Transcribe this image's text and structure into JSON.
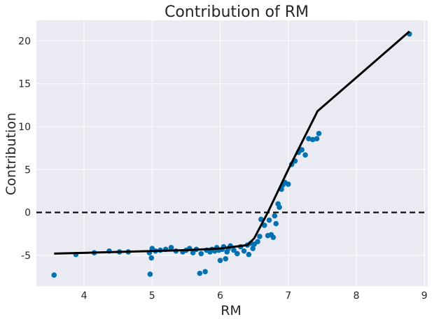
{
  "chart_data": {
    "type": "scatter",
    "title": "Contribution of RM",
    "xlabel": "RM",
    "ylabel": "Contribution",
    "xlim": [
      3.3,
      9.05
    ],
    "ylim": [
      -8.6,
      22.4
    ],
    "x_ticks": [
      4,
      5,
      6,
      7,
      8,
      9
    ],
    "y_ticks": [
      -5,
      0,
      5,
      10,
      15,
      20
    ],
    "grid": true,
    "reference_line": {
      "y": 0,
      "style": "dashed",
      "color": "#000000"
    },
    "colors": {
      "background": "#EAEAF2",
      "points": "#0072B2",
      "line": "#000000",
      "grid": "#ffffff"
    },
    "series": [
      {
        "type": "scatter",
        "points": [
          [
            3.56,
            -7.3
          ],
          [
            3.88,
            -4.9
          ],
          [
            4.15,
            -4.7
          ],
          [
            4.37,
            -4.5
          ],
          [
            4.52,
            -4.6
          ],
          [
            4.65,
            -4.6
          ],
          [
            4.96,
            -4.7
          ],
          [
            4.97,
            -7.2
          ],
          [
            4.99,
            -5.3
          ],
          [
            5.0,
            -4.2
          ],
          [
            5.05,
            -4.5
          ],
          [
            5.12,
            -4.4
          ],
          [
            5.2,
            -4.3
          ],
          [
            5.28,
            -4.1
          ],
          [
            5.35,
            -4.5
          ],
          [
            5.45,
            -4.6
          ],
          [
            5.5,
            -4.4
          ],
          [
            5.55,
            -4.2
          ],
          [
            5.6,
            -4.7
          ],
          [
            5.65,
            -4.3
          ],
          [
            5.7,
            -7.1
          ],
          [
            5.72,
            -4.8
          ],
          [
            5.78,
            -6.9
          ],
          [
            5.8,
            -4.4
          ],
          [
            5.85,
            -4.6
          ],
          [
            5.88,
            -4.3
          ],
          [
            5.92,
            -4.5
          ],
          [
            5.95,
            -4.1
          ],
          [
            5.98,
            -4.4
          ],
          [
            6.0,
            -5.6
          ],
          [
            6.03,
            -4.3
          ],
          [
            6.05,
            -4.0
          ],
          [
            6.08,
            -5.4
          ],
          [
            6.1,
            -4.6
          ],
          [
            6.12,
            -4.2
          ],
          [
            6.15,
            -3.9
          ],
          [
            6.2,
            -4.4
          ],
          [
            6.25,
            -4.8
          ],
          [
            6.3,
            -4.0
          ],
          [
            6.35,
            -4.5
          ],
          [
            6.4,
            -3.8
          ],
          [
            6.42,
            -4.9
          ],
          [
            6.45,
            -3.6
          ],
          [
            6.48,
            -4.2
          ],
          [
            6.5,
            -3.7
          ],
          [
            6.55,
            -3.4
          ],
          [
            6.58,
            -2.8
          ],
          [
            6.6,
            -0.8
          ],
          [
            6.65,
            -1.5
          ],
          [
            6.7,
            -2.7
          ],
          [
            6.72,
            -0.9
          ],
          [
            6.75,
            -2.6
          ],
          [
            6.78,
            -2.9
          ],
          [
            6.8,
            -0.4
          ],
          [
            6.82,
            -1.3
          ],
          [
            6.85,
            1.0
          ],
          [
            6.87,
            0.6
          ],
          [
            6.9,
            2.7
          ],
          [
            6.92,
            3.2
          ],
          [
            6.95,
            3.5
          ],
          [
            7.0,
            3.3
          ],
          [
            7.05,
            5.6
          ],
          [
            7.1,
            6.0
          ],
          [
            7.15,
            7.0
          ],
          [
            7.2,
            7.3
          ],
          [
            7.25,
            6.7
          ],
          [
            7.3,
            8.6
          ],
          [
            7.36,
            8.5
          ],
          [
            7.42,
            8.6
          ],
          [
            7.45,
            9.2
          ],
          [
            8.78,
            20.8
          ]
        ]
      },
      {
        "type": "line",
        "points": [
          [
            3.56,
            -4.8
          ],
          [
            4.5,
            -4.6
          ],
          [
            5.5,
            -4.4
          ],
          [
            6.0,
            -4.2
          ],
          [
            6.4,
            -3.8
          ],
          [
            6.5,
            -3.0
          ],
          [
            6.7,
            0.0
          ],
          [
            7.0,
            5.0
          ],
          [
            7.43,
            11.8
          ],
          [
            8.78,
            21.1
          ]
        ]
      }
    ]
  }
}
